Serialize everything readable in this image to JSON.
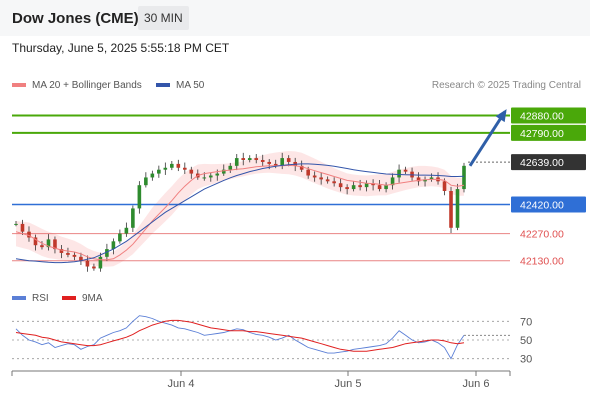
{
  "header": {
    "title": "Dow Jones (CME)",
    "timeframe": "30 MIN"
  },
  "datetime": "Thursday, June 5, 2025 5:55:18 PM CET",
  "legend": {
    "ma20": "MA 20 + Bollinger Bands",
    "ma50": "MA 50",
    "rsi": "RSI",
    "ma9": "9MA"
  },
  "credit": "Research © 2025 Trading Central",
  "colors": {
    "ma20": "#f08080",
    "ma50": "#3355aa",
    "target": "#4aa80a",
    "pivot": "#2f6fd6",
    "support": "#e05050",
    "current": "#333333",
    "candle_up": "#2e8b2e",
    "candle_down": "#c0392b",
    "band_fill": "#fde0e0",
    "rsi_line": "#5b7fd6",
    "rsi_ma": "#e02020",
    "arrow": "#2f5fa8"
  },
  "chart_data": [
    {
      "type": "candlestick",
      "title": "Dow Jones (CME)",
      "timeframe": "30 MIN",
      "x_ticks": [
        "Jun 4",
        "Jun 5",
        "Jun 6"
      ],
      "levels": [
        {
          "value": 42880.0,
          "label": "42880.00",
          "kind": "target"
        },
        {
          "value": 42790.0,
          "label": "42790.00",
          "kind": "target"
        },
        {
          "value": 42639.0,
          "label": "42639.00",
          "kind": "current"
        },
        {
          "value": 42420.0,
          "label": "42420.00",
          "kind": "pivot"
        },
        {
          "value": 42270.0,
          "label": "42270.00",
          "kind": "support"
        },
        {
          "value": 42130.0,
          "label": "42130.00",
          "kind": "support"
        }
      ],
      "price": [
        42320,
        42280,
        42250,
        42210,
        42200,
        42240,
        42190,
        42170,
        42160,
        42150,
        42130,
        42100,
        42090,
        42150,
        42190,
        42230,
        42270,
        42300,
        42400,
        42520,
        42560,
        42580,
        42600,
        42610,
        42630,
        42610,
        42600,
        42580,
        42560,
        42560,
        42570,
        42580,
        42600,
        42620,
        42660,
        42650,
        42660,
        42650,
        42640,
        42630,
        42620,
        42660,
        42640,
        42620,
        42600,
        42570,
        42560,
        42550,
        42540,
        42530,
        42510,
        42500,
        42520,
        42510,
        42530,
        42520,
        42500,
        42520,
        42560,
        42600,
        42590,
        42560,
        42540,
        42550,
        42560,
        42540,
        42490,
        42300,
        42500,
        42620
      ],
      "ma20": [
        42280,
        42270,
        42260,
        42240,
        42220,
        42205,
        42195,
        42185,
        42180,
        42175,
        42165,
        42150,
        42140,
        42135,
        42135,
        42140,
        42160,
        42185,
        42215,
        42255,
        42295,
        42335,
        42370,
        42405,
        42440,
        42480,
        42515,
        42545,
        42570,
        42580,
        42585,
        42590,
        42595,
        42598,
        42602,
        42605,
        42610,
        42615,
        42618,
        42620,
        42620,
        42620,
        42622,
        42620,
        42615,
        42605,
        42595,
        42585,
        42575,
        42565,
        42555,
        42545,
        42540,
        42535,
        42530,
        42528,
        42525,
        42520,
        42525,
        42530,
        42535,
        42540,
        42545,
        42548,
        42550,
        42550,
        42545,
        42520,
        42515,
        42520
      ],
      "ma50": [
        42140,
        42135,
        42130,
        42128,
        42125,
        42122,
        42120,
        42120,
        42122,
        42125,
        42130,
        42138,
        42145,
        42160,
        42175,
        42190,
        42210,
        42230,
        42255,
        42280,
        42305,
        42330,
        42355,
        42380,
        42400,
        42420,
        42440,
        42460,
        42480,
        42500,
        42515,
        42530,
        42545,
        42558,
        42570,
        42580,
        42590,
        42598,
        42606,
        42612,
        42618,
        42622,
        42626,
        42628,
        42630,
        42630,
        42628,
        42626,
        42622,
        42618,
        42612,
        42606,
        42600,
        42595,
        42590,
        42586,
        42582,
        42578,
        42576,
        42575,
        42574,
        42573,
        42572,
        42572,
        42571,
        42570,
        42568,
        42565,
        42565,
        42566
      ],
      "rsi": {
        "y_ticks": [
          70,
          50,
          30
        ],
        "range": [
          20,
          80
        ],
        "values": [
          62,
          55,
          50,
          48,
          45,
          47,
          42,
          44,
          46,
          45,
          40,
          43,
          45,
          52,
          55,
          58,
          60,
          63,
          70,
          76,
          75,
          73,
          70,
          68,
          66,
          63,
          62,
          60,
          58,
          55,
          56,
          57,
          58,
          60,
          62,
          61,
          58,
          56,
          55,
          53,
          50,
          52,
          55,
          50,
          46,
          42,
          40,
          38,
          36,
          36,
          37,
          38,
          40,
          41,
          42,
          43,
          44,
          46,
          52,
          60,
          55,
          50,
          47,
          48,
          50,
          47,
          42,
          30,
          45,
          55
        ],
        "ma9": [
          58,
          57,
          56,
          55,
          53,
          52,
          50,
          48,
          47,
          46,
          45,
          44,
          44,
          45,
          47,
          49,
          51,
          53,
          56,
          60,
          63,
          66,
          68,
          70,
          71,
          71,
          70,
          69,
          67,
          65,
          63,
          62,
          61,
          60,
          60,
          60,
          59,
          59,
          58,
          57,
          56,
          55,
          54,
          53,
          52,
          50,
          48,
          46,
          44,
          42,
          40,
          39,
          38,
          38,
          38,
          39,
          40,
          41,
          42,
          44,
          46,
          47,
          48,
          49,
          50,
          50,
          49,
          47,
          46,
          47
        ]
      }
    }
  ]
}
